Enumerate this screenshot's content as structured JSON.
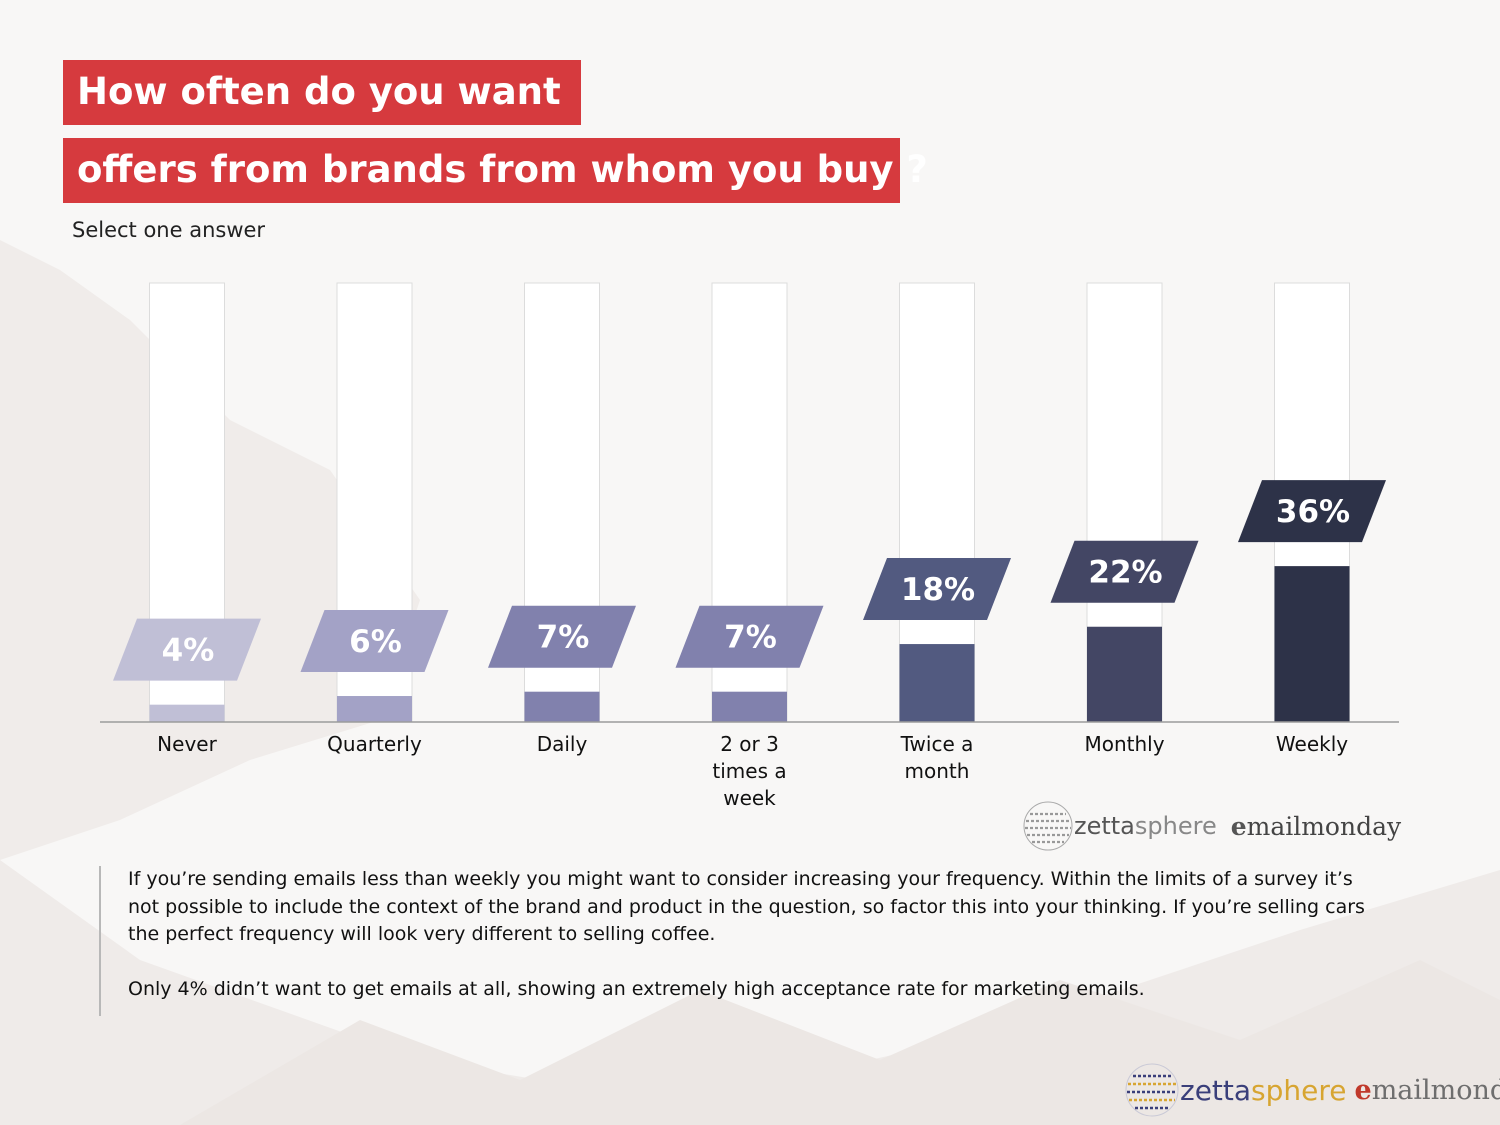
{
  "title": {
    "line1": "How often do you want",
    "line2": "offers from brands from whom you buy ?"
  },
  "subtitle": "Select one answer",
  "chart_data": {
    "type": "bar",
    "categories": [
      "Never",
      "Quarterly",
      "Daily",
      "2 or 3 times a week",
      "Twice a month",
      "Monthly",
      "Weekly"
    ],
    "values": [
      4,
      6,
      7,
      7,
      18,
      22,
      36
    ],
    "value_labels": [
      "4%",
      "6%",
      "7%",
      "7%",
      "18%",
      "22%",
      "36%"
    ],
    "unit": "%",
    "ylim": [
      0,
      100
    ],
    "xlabel": "",
    "ylabel": "",
    "grid": false,
    "colors": [
      "#c0bfd6",
      "#a3a2c6",
      "#8181ad",
      "#8181ad",
      "#525a80",
      "#434664",
      "#2d3248"
    ]
  },
  "logos": {
    "zetta": "zetta",
    "sphere": "sphere",
    "e": "e",
    "mailmonday": "mailmonday"
  },
  "commentary": {
    "paragraph1": "If you’re sending emails less than weekly you might want to consider increasing your frequency. Within the limits of a survey it’s not possible to include the context of the brand and product in the question, so factor this into your thinking. If you’re selling cars the perfect frequency will look very different to selling coffee.",
    "paragraph2": "Only 4% didn’t want to get emails at all, showing an extremely high acceptance rate for marketing emails."
  }
}
